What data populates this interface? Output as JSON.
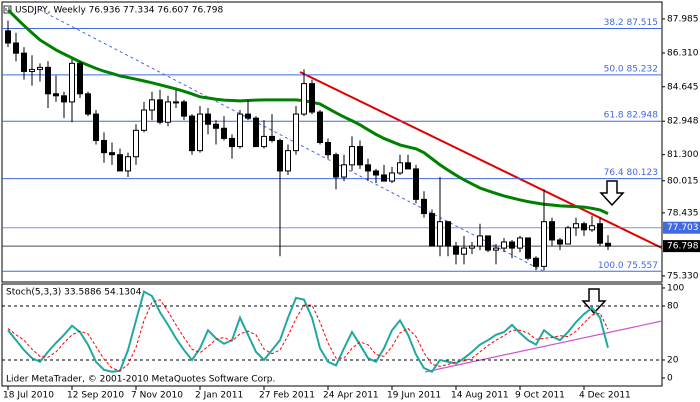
{
  "chart_data": [
    {
      "type": "candlestick",
      "title": "USDJPY, Weekly 76.936 77.334 76.607 76.798",
      "categories": [
        "18 Jul 2010",
        null,
        null,
        null,
        null,
        null,
        null,
        null,
        "12 Sep 2010",
        null,
        null,
        null,
        null,
        null,
        null,
        null,
        "7 Nov 2010",
        null,
        null,
        null,
        null,
        null,
        null,
        null,
        "2 Jan 2011",
        null,
        null,
        null,
        null,
        null,
        null,
        null,
        "27 Feb 2011",
        null,
        null,
        null,
        null,
        null,
        null,
        null,
        "24 Apr 2011",
        null,
        null,
        null,
        null,
        null,
        null,
        null,
        "19 Jun 2011",
        null,
        null,
        null,
        null,
        null,
        null,
        null,
        "14 Aug 2011",
        null,
        null,
        null,
        null,
        null,
        null,
        null,
        "9 Oct 2011",
        null,
        null,
        null,
        null,
        null,
        null,
        null,
        "4 Dec 2011",
        null,
        null,
        null
      ],
      "open": [
        87.4,
        86.8,
        86.3,
        85.4,
        85.5,
        85.6,
        84.3,
        84.2,
        83.9,
        85.8,
        84.3,
        83.3,
        82.0,
        81.4,
        81.3,
        80.5,
        81.2,
        82.5,
        83.5,
        84.0,
        82.9,
        83.9,
        83.9,
        83.2,
        81.5,
        83.3,
        82.8,
        82.6,
        82.1,
        81.7,
        83.3,
        83.1,
        81.7,
        82.2,
        82.0,
        80.5,
        81.5,
        83.3,
        84.8,
        83.4,
        81.9,
        81.3,
        80.2,
        80.8,
        81.7,
        80.8,
        80.5,
        80.3,
        80.0,
        80.4,
        80.9,
        80.6,
        79.1,
        78.4,
        76.8,
        78.0,
        76.8,
        76.4,
        76.7,
        76.8,
        77.3,
        76.6,
        76.7,
        77.0,
        76.7,
        77.2,
        76.2,
        75.8,
        78.0,
        77.1,
        76.9,
        77.7,
        77.9,
        77.6,
        77.9,
        76.936
      ],
      "high": [
        87.9,
        87.3,
        86.6,
        86.2,
        85.8,
        85.9,
        85.2,
        84.4,
        86.0,
        85.9,
        84.4,
        83.5,
        82.4,
        81.9,
        81.6,
        81.4,
        82.8,
        83.9,
        84.4,
        84.5,
        84.2,
        84.5,
        84.0,
        83.3,
        83.7,
        83.6,
        83.0,
        83.2,
        82.3,
        83.5,
        84.0,
        83.2,
        83.0,
        83.3,
        82.1,
        81.8,
        83.7,
        85.5,
        85.0,
        83.5,
        82.1,
        81.4,
        81.3,
        82.2,
        82.0,
        81.1,
        80.6,
        80.8,
        80.7,
        81.3,
        81.3,
        80.8,
        79.5,
        78.6,
        80.2,
        78.0,
        77.0,
        77.3,
        77.0,
        77.9,
        77.3,
        76.9,
        77.2,
        77.1,
        77.3,
        77.2,
        76.3,
        79.6,
        78.2,
        77.2,
        77.8,
        78.2,
        78.0,
        78.3,
        78.2,
        77.334
      ],
      "low": [
        86.6,
        85.9,
        85.0,
        84.7,
        84.9,
        83.6,
        83.9,
        83.1,
        82.9,
        84.1,
        83.2,
        81.8,
        80.9,
        80.8,
        80.5,
        80.2,
        80.8,
        82.4,
        83.0,
        82.8,
        82.7,
        83.6,
        83.0,
        81.3,
        81.4,
        82.3,
        81.8,
        82.0,
        81.1,
        81.6,
        83.0,
        81.7,
        81.6,
        81.9,
        76.3,
        80.3,
        81.3,
        83.2,
        83.3,
        81.8,
        81.1,
        79.6,
        80.0,
        80.5,
        80.6,
        80.0,
        79.9,
        80.0,
        79.9,
        80.3,
        80.6,
        78.9,
        78.2,
        76.8,
        76.3,
        76.3,
        75.9,
        75.9,
        76.4,
        76.6,
        76.5,
        75.9,
        76.5,
        76.2,
        76.5,
        76.1,
        75.6,
        75.6,
        76.8,
        76.6,
        76.9,
        77.3,
        77.3,
        77.5,
        76.8,
        76.607
      ],
      "close": [
        86.8,
        86.3,
        85.4,
        85.5,
        85.6,
        84.3,
        84.2,
        83.9,
        85.8,
        84.3,
        83.3,
        82.0,
        81.4,
        81.3,
        80.5,
        81.2,
        82.5,
        83.5,
        84.0,
        82.9,
        83.9,
        83.9,
        83.2,
        81.5,
        83.3,
        82.8,
        82.6,
        82.1,
        81.7,
        83.3,
        83.1,
        81.7,
        82.2,
        82.0,
        80.5,
        81.5,
        83.3,
        84.8,
        83.4,
        81.9,
        81.3,
        80.2,
        80.8,
        81.7,
        80.8,
        80.5,
        80.3,
        80.0,
        80.4,
        80.9,
        80.6,
        79.1,
        78.4,
        76.8,
        78.0,
        76.8,
        76.4,
        76.7,
        76.8,
        77.3,
        76.6,
        76.7,
        77.0,
        76.7,
        77.2,
        76.2,
        75.8,
        78.0,
        77.1,
        76.9,
        77.7,
        77.9,
        77.6,
        77.8,
        76.94,
        76.798
      ],
      "overlays": [
        {
          "type": "line",
          "color": "#008000",
          "values": [
            88.43,
            88.04,
            87.66,
            87.3,
            86.95,
            86.7,
            86.46,
            86.26,
            86.07,
            85.87,
            85.71,
            85.55,
            85.41,
            85.3,
            85.18,
            85.1,
            85.02,
            84.93,
            84.84,
            84.74,
            84.64,
            84.54,
            84.42,
            84.29,
            84.15,
            84.09,
            84.03,
            83.99,
            83.97,
            83.95,
            83.97,
            83.99,
            84.0,
            84.0,
            84.0,
            84.0,
            84.0,
            83.96,
            83.88,
            83.8,
            83.58,
            83.36,
            83.16,
            82.97,
            82.77,
            82.53,
            82.3,
            82.1,
            81.94,
            81.78,
            81.68,
            81.59,
            81.4,
            81.1,
            80.8,
            80.54,
            80.29,
            80.06,
            79.86,
            79.66,
            79.52,
            79.39,
            79.27,
            79.17,
            79.07,
            78.99,
            78.92,
            78.86,
            78.82,
            78.78,
            78.76,
            78.74,
            78.72,
            78.66,
            78.58,
            78.4
          ]
        }
      ],
      "levels": [
        {
          "value": 87.515,
          "label": "38.2 87.515"
        },
        {
          "value": 85.232,
          "label": "50.0 85.232"
        },
        {
          "value": 82.948,
          "label": "61.8 82.948"
        },
        {
          "value": 80.123,
          "label": "76.4 80.123"
        },
        {
          "value": 75.557,
          "label": "100.0 75.557"
        }
      ],
      "level_color": "#4169e1",
      "markers": [
        {
          "value": 77.703,
          "color": "#4169e1"
        },
        {
          "value": 76.798,
          "color": "#000000"
        }
      ],
      "ylim": [
        75.03,
        88.82
      ],
      "yticks": [
        {
          "value": 75.33,
          "label": "75.330"
        },
        78.435,
        80.015,
        {
          "value": 81.3,
          "label": "81.300"
        },
        82.948,
        84.645,
        {
          "value": 86.31,
          "label": "86.310"
        },
        87.985
      ]
    },
    {
      "type": "stochastic",
      "title": "Stoch(5,3,3) 33.5886 54.1304",
      "series": [
        {
          "color": "#20a8a0",
          "values": [
            53,
            42,
            31,
            22,
            18,
            29,
            39,
            48,
            58,
            51,
            37,
            18,
            9,
            7,
            8,
            31,
            64,
            96,
            91,
            73,
            59,
            44,
            31,
            20,
            33,
            53,
            44,
            38,
            42,
            67,
            48,
            29,
            20,
            31,
            42,
            67,
            89,
            87,
            67,
            33,
            18,
            14,
            33,
            51,
            37,
            22,
            18,
            33,
            53,
            64,
            48,
            26,
            11,
            7,
            20,
            18,
            16,
            22,
            29,
            37,
            42,
            48,
            51,
            59,
            50,
            42,
            37,
            53,
            46,
            42,
            51,
            62,
            71,
            78,
            67,
            33.5886
          ]
        },
        {
          "color": "#ff0000",
          "dash": true,
          "values": [
            55,
            48,
            42,
            32,
            24,
            23,
            29,
            39,
            48,
            52,
            49,
            35,
            21,
            11,
            8,
            15,
            34,
            64,
            84,
            87,
            74,
            59,
            45,
            32,
            28,
            35,
            43,
            45,
            41,
            49,
            52,
            48,
            32,
            27,
            31,
            47,
            66,
            81,
            81,
            62,
            39,
            22,
            22,
            33,
            40,
            37,
            26,
            24,
            35,
            50,
            55,
            46,
            28,
            15,
            13,
            15,
            18,
            19,
            22,
            29,
            36,
            42,
            47,
            53,
            53,
            50,
            43,
            44,
            45,
            47,
            46,
            52,
            61,
            70,
            72,
            54.1304
          ]
        }
      ],
      "levels": [
        20,
        80
      ],
      "ylim": [
        -8.9,
        104.4
      ],
      "yticks": [
        0,
        20,
        80,
        100
      ]
    }
  ],
  "footer": "Lider MetaTrader, © 2001-2010 MetaQuotes Software Corp."
}
